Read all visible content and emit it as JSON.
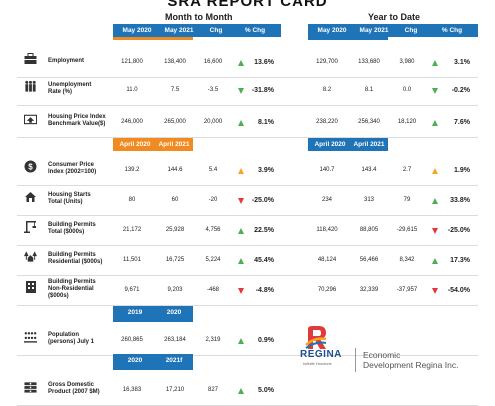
{
  "title": "SRA REPORT CARD",
  "groups": {
    "month": "Month to Month",
    "year": "Year to Date"
  },
  "cols_month": [
    "May 2020",
    "May 2021",
    "Chg",
    "% Chg"
  ],
  "cols_year": [
    "May 2020",
    "May 2021",
    "Chg",
    "% Chg"
  ],
  "cols_april": [
    "April 2020",
    "April 2021"
  ],
  "cols_annual": [
    "2019",
    "2020"
  ],
  "cols_gdp": [
    "2020",
    "2021f"
  ],
  "rows": [
    {
      "label": "Employment",
      "icon": "briefcase-icon",
      "m": [
        "121,800",
        "138,400",
        "16,600"
      ],
      "mp": "13.6%",
      "md": "up",
      "y": [
        "129,700",
        "133,680",
        "3,980"
      ],
      "yp": "3.1%",
      "yd": "up"
    },
    {
      "label": "Unemployment\nRate (%)",
      "icon": "people-icon",
      "m": [
        "11.0",
        "7.5",
        "-3.5"
      ],
      "mp": "-31.8%",
      "md": "down-g",
      "y": [
        "8.2",
        "8.1",
        "0.0"
      ],
      "yp": "-0.2%",
      "yd": "down-g"
    },
    {
      "label": "Housing Price Index\nBenchmark Value($)",
      "icon": "house-money-icon",
      "m": [
        "246,000",
        "265,000",
        "20,000"
      ],
      "mp": "8.1%",
      "md": "up",
      "y": [
        "238,220",
        "256,340",
        "18,120"
      ],
      "yp": "7.6%",
      "yd": "up"
    },
    {
      "label": "Consumer Price\nIndex (2002=100)",
      "icon": "dollar-coin-icon",
      "m": [
        "139.2",
        "144.6",
        "5.4"
      ],
      "mp": "3.9%",
      "md": "up-or",
      "y": [
        "140.7",
        "143.4",
        "2.7"
      ],
      "yp": "1.9%",
      "yd": "up-or"
    },
    {
      "label": "Housing Starts\nTotal (Units)",
      "icon": "house-icon",
      "m": [
        "80",
        "60",
        "-20"
      ],
      "mp": "-25.0%",
      "md": "down-r",
      "y": [
        "234",
        "313",
        "79"
      ],
      "yp": "33.8%",
      "yd": "up"
    },
    {
      "label": "Building Permits\nTotal ($000s)",
      "icon": "crane-icon",
      "m": [
        "21,172",
        "25,928",
        "4,756"
      ],
      "mp": "22.5%",
      "md": "up",
      "y": [
        "118,420",
        "88,805",
        "-29,615"
      ],
      "yp": "-25.0%",
      "yd": "down-r"
    },
    {
      "label": "Building Permits\nResidential ($000s)",
      "icon": "trees-house-icon",
      "m": [
        "11,501",
        "16,725",
        "5,224"
      ],
      "mp": "45.4%",
      "md": "up",
      "y": [
        "48,124",
        "56,466",
        "8,342"
      ],
      "yp": "17.3%",
      "yd": "up"
    },
    {
      "label": "Building Permits\nNon-Residential\n($000s)",
      "icon": "office-building-icon",
      "m": [
        "9,671",
        "9,203",
        "-468"
      ],
      "mp": "-4.8%",
      "md": "down-r",
      "y": [
        "70,296",
        "32,339",
        "-37,957"
      ],
      "yp": "-54.0%",
      "yd": "down-r"
    },
    {
      "label": "Population\n(persons) July 1",
      "icon": "population-icon",
      "m": [
        "260,865",
        "263,184",
        "2,319"
      ],
      "mp": "0.9%",
      "md": "up",
      "y": null
    },
    {
      "label": "Gross Domestic\nProduct (2007 $M)",
      "icon": "money-stack-icon",
      "m": [
        "16,383",
        "17,210",
        "827"
      ],
      "mp": "5.0%",
      "md": "up",
      "y": null
    }
  ],
  "logo": {
    "word": "REGINA",
    "tagline": "Infinite Horizons",
    "org_line1": "Economic",
    "org_line2": "Development Regina Inc."
  }
}
